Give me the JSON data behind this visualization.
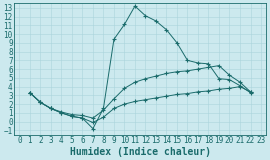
{
  "xlabel": "Humidex (Indice chaleur)",
  "bg_color": "#cce9ee",
  "line_color": "#1a6b6b",
  "grid_color": "#aad4dc",
  "xlim": [
    -0.5,
    23.5
  ],
  "ylim": [
    -1.5,
    13.5
  ],
  "xticks": [
    0,
    1,
    2,
    3,
    4,
    5,
    6,
    7,
    8,
    9,
    10,
    11,
    12,
    13,
    14,
    15,
    16,
    17,
    18,
    19,
    20,
    21,
    22,
    23
  ],
  "yticks": [
    -1,
    0,
    1,
    2,
    3,
    4,
    5,
    6,
    7,
    8,
    9,
    10,
    11,
    12,
    13
  ],
  "line1_x": [
    1,
    2,
    3,
    4,
    5,
    6,
    7,
    8,
    9,
    10,
    11,
    12,
    13,
    14,
    15,
    16,
    17,
    18,
    19,
    20,
    21,
    22
  ],
  "line1_y": [
    3.3,
    2.2,
    1.5,
    1.0,
    0.6,
    0.4,
    -0.8,
    1.5,
    9.4,
    11.1,
    13.2,
    12.1,
    11.5,
    10.5,
    9.0,
    7.0,
    6.7,
    6.6,
    4.9,
    4.8,
    4.1,
    3.3
  ],
  "line2_x": [
    1,
    2,
    3,
    4,
    5,
    6,
    7,
    8,
    9,
    10,
    11,
    12,
    13,
    14,
    15,
    16,
    17,
    18,
    19,
    20,
    21,
    22
  ],
  "line2_y": [
    3.3,
    2.2,
    1.5,
    1.1,
    0.8,
    0.7,
    0.4,
    1.3,
    2.6,
    3.8,
    4.5,
    4.9,
    5.2,
    5.5,
    5.7,
    5.8,
    6.0,
    6.2,
    6.4,
    5.3,
    4.5,
    3.4
  ],
  "line3_x": [
    1,
    2,
    3,
    4,
    5,
    6,
    7,
    8,
    9,
    10,
    11,
    12,
    13,
    14,
    15,
    16,
    17,
    18,
    19,
    20,
    21,
    22
  ],
  "line3_y": [
    3.3,
    2.2,
    1.5,
    1.0,
    0.6,
    0.4,
    -0.1,
    0.5,
    1.5,
    2.0,
    2.3,
    2.5,
    2.7,
    2.9,
    3.1,
    3.2,
    3.4,
    3.5,
    3.7,
    3.8,
    4.0,
    3.4
  ],
  "tick_fontsize": 5.5,
  "label_fontsize": 7.0
}
